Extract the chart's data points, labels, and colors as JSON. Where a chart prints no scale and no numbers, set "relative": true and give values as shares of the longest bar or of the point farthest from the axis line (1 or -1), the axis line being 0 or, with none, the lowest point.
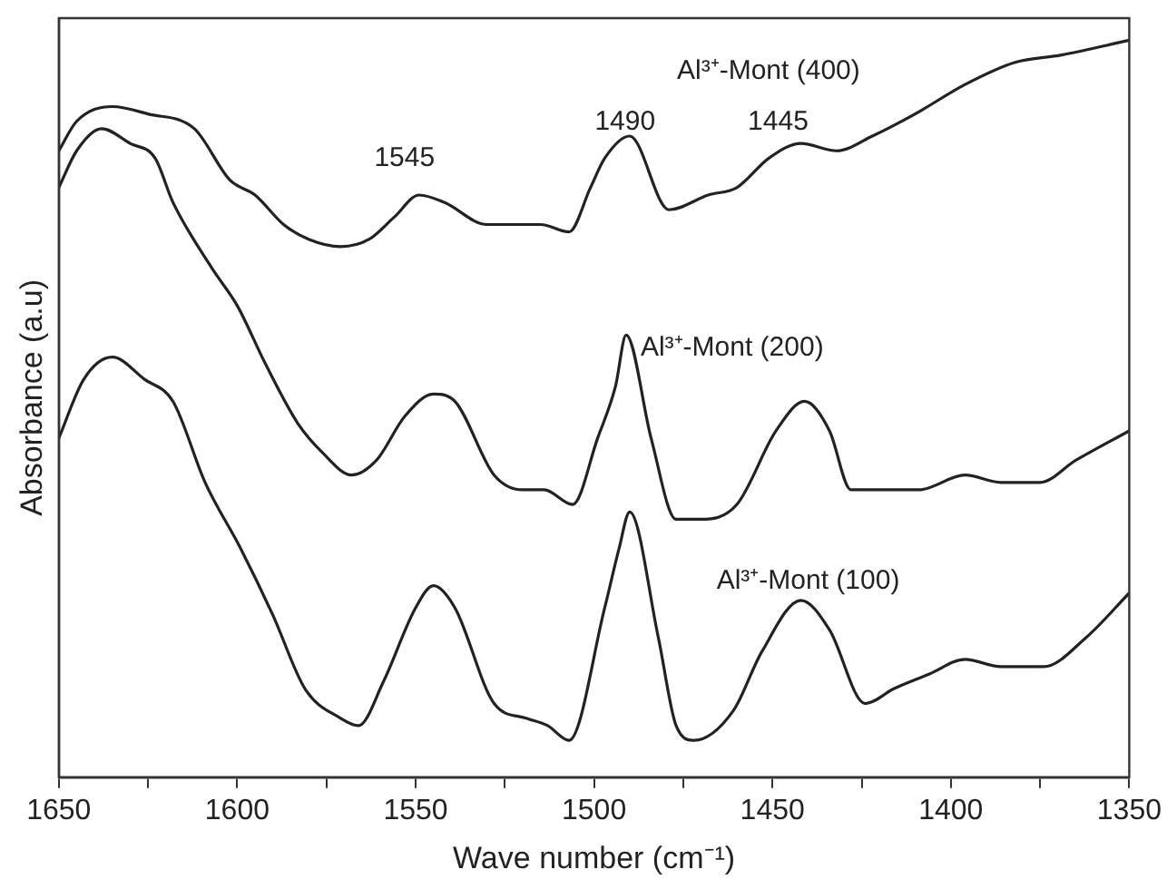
{
  "chart_data": {
    "type": "line",
    "xlabel": "Wave number (cm⁻¹)",
    "ylabel": "Absorbance (a.u)",
    "relative": true,
    "xlim": [
      1650,
      1350
    ],
    "xticks": [
      1650,
      {
        "value": 1625,
        "label": null
      },
      1600,
      {
        "value": 1575,
        "label": null
      },
      1550,
      {
        "value": 1525,
        "label": null
      },
      1500,
      {
        "value": 1475,
        "label": null
      },
      1450,
      {
        "value": 1425,
        "label": null
      },
      1400,
      {
        "value": 1375,
        "label": null
      },
      1350
    ],
    "grid": false,
    "legend": false,
    "marker": "none",
    "line_style": "solid",
    "annotations": [
      "1545",
      "1490",
      "1445"
    ],
    "series": [
      {
        "name": "Al³⁺-Mont (400)",
        "color": "#222222",
        "x": [
          1650,
          1645,
          1635,
          1625,
          1612,
          1602,
          1595,
          1587,
          1580,
          1571,
          1563,
          1556,
          1549,
          1542,
          1530,
          1522,
          1515,
          1507,
          1501,
          1497,
          1490,
          1479,
          1468,
          1460,
          1451,
          1442,
          1432,
          1422,
          1410,
          1396,
          1382,
          1369,
          1350
        ],
        "values": [
          0.85,
          0.89,
          0.91,
          0.9,
          0.88,
          0.81,
          0.79,
          0.75,
          0.73,
          0.72,
          0.73,
          0.76,
          0.79,
          0.78,
          0.75,
          0.75,
          0.75,
          0.74,
          0.8,
          0.84,
          0.87,
          0.77,
          0.79,
          0.8,
          0.84,
          0.86,
          0.85,
          0.87,
          0.9,
          0.94,
          0.97,
          0.98,
          1
        ]
      },
      {
        "name": "Al³⁺-Mont (200)",
        "color": "#222222",
        "x": [
          1650,
          1645,
          1638,
          1630,
          1623,
          1618,
          1607,
          1600,
          1592,
          1583,
          1576,
          1568,
          1561,
          1553,
          1545,
          1539,
          1528,
          1520,
          1514,
          1506,
          1499,
          1494,
          1491,
          1484,
          1477,
          1470,
          1460,
          1449,
          1441,
          1434,
          1428,
          1420,
          1409,
          1396,
          1386,
          1375,
          1365,
          1350
        ],
        "values": [
          0.8,
          0.85,
          0.88,
          0.86,
          0.84,
          0.78,
          0.69,
          0.64,
          0.56,
          0.48,
          0.44,
          0.41,
          0.43,
          0.49,
          0.52,
          0.51,
          0.41,
          0.39,
          0.39,
          0.37,
          0.46,
          0.53,
          0.6,
          0.46,
          0.35,
          0.35,
          0.37,
          0.47,
          0.51,
          0.47,
          0.39,
          0.39,
          0.39,
          0.41,
          0.4,
          0.4,
          0.43,
          0.47
        ]
      },
      {
        "name": "Al³⁺-Mont (100)",
        "color": "#222222",
        "x": [
          1650,
          1643,
          1635,
          1626,
          1618,
          1609,
          1599,
          1590,
          1581,
          1571,
          1566,
          1559,
          1550,
          1545,
          1539,
          1528,
          1519,
          1513,
          1507,
          1497,
          1493,
          1490,
          1482,
          1477,
          1472,
          1461,
          1453,
          1442,
          1434,
          1424,
          1416,
          1406,
          1396,
          1386,
          1374,
          1362,
          1350
        ],
        "values": [
          0.46,
          0.54,
          0.57,
          0.54,
          0.51,
          0.4,
          0.31,
          0.22,
          0.12,
          0.08,
          0.07,
          0.13,
          0.23,
          0.26,
          0.23,
          0.1,
          0.08,
          0.07,
          0.05,
          0.23,
          0.31,
          0.36,
          0.19,
          0.07,
          0.05,
          0.09,
          0.17,
          0.24,
          0.2,
          0.1,
          0.12,
          0.14,
          0.16,
          0.15,
          0.15,
          0.19,
          0.25
        ]
      }
    ]
  }
}
